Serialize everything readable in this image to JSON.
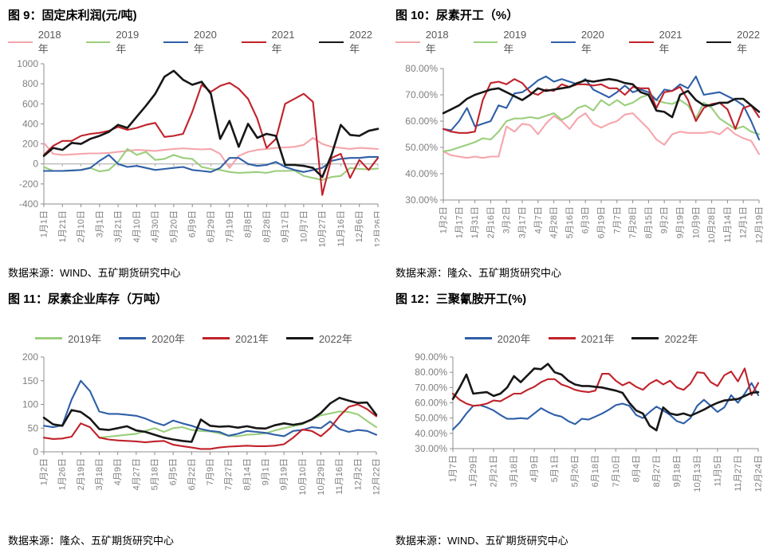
{
  "page": {
    "background": "#ffffff"
  },
  "palette": {
    "y2018": "#F5A6AC",
    "y2019": "#9BCE7D",
    "y2020": "#2F5FA7",
    "y2021": "#C0222B",
    "y2022": "#171717"
  },
  "chart_data": [
    {
      "type": "line",
      "title": "图 9：固定床利润(元/吨)",
      "source": "数据来源：WIND、五矿期货研究中心",
      "ylim": [
        -400,
        1000
      ],
      "ytick_step": 200,
      "ytick_format": "int",
      "zero_axis": true,
      "grid": false,
      "legend_position": "top",
      "x_labels": [
        "1月1日",
        "1月21日",
        "2月10日",
        "3月1日",
        "3月21日",
        "4月10日",
        "4月30日",
        "5月20日",
        "6月9日",
        "6月29日",
        "7月19日",
        "8月8日",
        "8月28日",
        "9月17日",
        "10月7日",
        "10月27日",
        "11月16日",
        "12月6日",
        "12月26日"
      ],
      "series": [
        {
          "name": "2018年",
          "color": "#F5A6AC",
          "values": [
            210,
            100,
            90,
            95,
            100,
            105,
            105,
            110,
            120,
            130,
            140,
            135,
            130,
            140,
            150,
            155,
            150,
            145,
            150,
            100,
            -40,
            80,
            120,
            140,
            150,
            160,
            165,
            170,
            190,
            260,
            200,
            170,
            160,
            150,
            160,
            155,
            150
          ]
        },
        {
          "name": "2019年",
          "color": "#9BCE7D",
          "values": [
            -30,
            -70,
            -70,
            -65,
            -60,
            -40,
            -75,
            -60,
            20,
            150,
            90,
            120,
            40,
            50,
            90,
            60,
            50,
            -30,
            -50,
            -60,
            -80,
            -90,
            -85,
            -80,
            -90,
            -70,
            -70,
            -65,
            -120,
            -140,
            -160,
            -130,
            -120,
            -40,
            -50,
            -55,
            -45
          ]
        },
        {
          "name": "2020年",
          "color": "#2F5FA7",
          "values": [
            -70,
            -70,
            -70,
            -65,
            -60,
            -40,
            30,
            90,
            0,
            -30,
            -20,
            -40,
            -60,
            -50,
            -40,
            -30,
            -60,
            -70,
            -80,
            -40,
            60,
            60,
            0,
            -20,
            -10,
            20,
            -30,
            -60,
            -80,
            -60,
            -40,
            30,
            50,
            60,
            60,
            70,
            70
          ]
        },
        {
          "name": "2021年",
          "color": "#C0222B",
          "values": [
            90,
            180,
            230,
            230,
            280,
            300,
            310,
            330,
            370,
            340,
            360,
            390,
            410,
            270,
            280,
            300,
            520,
            790,
            720,
            780,
            810,
            750,
            650,
            450,
            160,
            250,
            600,
            650,
            700,
            620,
            -310,
            60,
            100,
            -140,
            40,
            -60,
            60
          ]
        },
        {
          "name": "2022年",
          "color": "#171717",
          "values": [
            80,
            160,
            140,
            210,
            200,
            250,
            280,
            320,
            390,
            360,
            470,
            580,
            700,
            870,
            930,
            840,
            790,
            820,
            700,
            250,
            430,
            170,
            400,
            260,
            300,
            280,
            -10,
            -10,
            -20,
            -40,
            -130,
            90,
            390,
            290,
            280,
            330,
            350
          ]
        }
      ]
    },
    {
      "type": "line",
      "title": "图 10：尿素开工（%）",
      "source": "数据来源：隆众、五矿期货研究中心",
      "ylim": [
        30,
        80
      ],
      "ytick_step": 10,
      "ytick_format": "pct",
      "zero_axis": false,
      "grid": false,
      "legend_position": "top",
      "x_labels": [
        "1月2日",
        "1月17日",
        "1月31日",
        "2月16日",
        "3月2日",
        "3月17日",
        "4月7日",
        "4月28日",
        "5月16日",
        "6月3日",
        "6月19日",
        "7月7日",
        "7月28日",
        "8月15日",
        "9月2日",
        "9月19日",
        "10月9日",
        "10月28日",
        "11月14日",
        "12月1日",
        "12月19日"
      ],
      "series": [
        {
          "name": "2018年",
          "color": "#F5A6AC",
          "values": [
            48.5,
            47,
            46.5,
            46,
            46.5,
            46,
            46.5,
            46.5,
            58,
            56,
            59,
            58.5,
            55,
            59,
            62,
            60,
            57,
            61,
            63,
            59,
            57.5,
            59,
            60,
            62.5,
            63,
            60,
            57,
            53,
            51,
            55,
            56,
            55.5,
            55.5,
            55.5,
            56,
            55,
            57.5,
            55,
            53.5,
            52.5,
            47.5
          ]
        },
        {
          "name": "2019年",
          "color": "#9BCE7D",
          "values": [
            48.5,
            49,
            50,
            51,
            52,
            53.5,
            53,
            56,
            60,
            61,
            61,
            61.5,
            61,
            62,
            63,
            60.5,
            62,
            65,
            66,
            64,
            68,
            66,
            68,
            66,
            67,
            69,
            70,
            68,
            67,
            66.5,
            68,
            66,
            61,
            67,
            65,
            61,
            59,
            57,
            58,
            56,
            55
          ]
        },
        {
          "name": "2020年",
          "color": "#2F5FA7",
          "values": [
            57,
            56.5,
            60,
            65,
            58,
            59,
            60,
            66,
            65,
            70.5,
            71,
            73,
            75.5,
            77,
            75,
            76,
            75,
            74,
            76,
            72,
            70.5,
            69,
            71,
            73.5,
            71,
            72,
            71,
            68,
            72,
            71.5,
            74,
            72.5,
            77,
            70,
            70.5,
            71,
            69.5,
            68,
            66,
            60,
            53
          ]
        },
        {
          "name": "2021年",
          "color": "#C0222B",
          "values": [
            57,
            56,
            55.5,
            55.5,
            56,
            68,
            74.5,
            75,
            74,
            76,
            74.5,
            71,
            70,
            72,
            71.5,
            74,
            73,
            74,
            74,
            73.5,
            74,
            72.5,
            72.5,
            70,
            73,
            72.5,
            72.5,
            65,
            71,
            71.5,
            73,
            68,
            60,
            65,
            66.5,
            67,
            64.5,
            57,
            65,
            66,
            61.5
          ]
        },
        {
          "name": "2022年",
          "color": "#171717",
          "values": [
            63,
            64.5,
            66,
            68.5,
            70,
            71,
            72,
            72.5,
            71,
            69.5,
            68,
            70,
            72.5,
            71.5,
            72,
            72.5,
            73,
            74.5,
            75.5,
            75,
            75.5,
            76,
            75.5,
            74.5,
            74,
            71,
            70,
            64,
            63.5,
            61.5,
            70,
            71.5,
            68,
            66,
            66,
            67,
            67,
            68.5,
            68.5,
            66,
            63.5
          ]
        }
      ]
    },
    {
      "type": "line",
      "title": "图 11：尿素企业库存（万吨）",
      "source": "数据来源：隆众、五矿期货研究中心",
      "ylim": [
        0,
        200
      ],
      "ytick_step": 50,
      "ytick_format": "int",
      "zero_axis": false,
      "grid": false,
      "legend_position": "top",
      "x_labels": [
        "1月2日",
        "1月26日",
        "2月19日",
        "3月18日",
        "4月9日",
        "4月27日",
        "5月18日",
        "6月5日",
        "6月22日",
        "7月9日",
        "7月27日",
        "8月14日",
        "9月1日",
        "9月19日",
        "10月10日",
        "10月29日",
        "11月16日",
        "12月2日",
        "12月22日"
      ],
      "series": [
        {
          "name": "2019年",
          "color": "#9BCE7D",
          "values": [
            null,
            null,
            null,
            null,
            null,
            null,
            30,
            32,
            34,
            36,
            38,
            44,
            50,
            42,
            50,
            52,
            46,
            44,
            43,
            39,
            34,
            33,
            36,
            37,
            39,
            45,
            50,
            54,
            58,
            68,
            77,
            81,
            85,
            84,
            79,
            65,
            52
          ]
        },
        {
          "name": "2020年",
          "color": "#2F5FA7",
          "values": [
            55,
            52,
            56,
            110,
            150,
            128,
            85,
            80,
            80,
            78,
            76,
            70,
            62,
            56,
            66,
            60,
            55,
            48,
            44,
            42,
            34,
            38,
            44,
            42,
            40,
            36,
            33,
            44,
            46,
            52,
            50,
            64,
            48,
            42,
            46,
            44,
            36
          ]
        },
        {
          "name": "2021年",
          "color": "#C0222B",
          "values": [
            30,
            27,
            28,
            32,
            60,
            52,
            30,
            26,
            24,
            23,
            22,
            20,
            22,
            23,
            15,
            12,
            9,
            6,
            6,
            9,
            11,
            12,
            13,
            12,
            12,
            13,
            16,
            30,
            47,
            44,
            33,
            50,
            75,
            95,
            100,
            90,
            75
          ]
        },
        {
          "name": "2022年",
          "color": "#171717",
          "values": [
            72,
            58,
            55,
            88,
            84,
            70,
            48,
            46,
            50,
            54,
            45,
            42,
            36,
            30,
            26,
            23,
            21,
            68,
            55,
            53,
            54,
            51,
            54,
            50,
            49,
            56,
            60,
            57,
            60,
            68,
            82,
            102,
            114,
            108,
            103,
            104,
            78
          ]
        }
      ]
    },
    {
      "type": "line",
      "title": "图 12：三聚氰胺开工(%)",
      "source": "数据来源：WIND、五矿期货研究中心",
      "ylim": [
        30,
        90
      ],
      "ytick_step": 10,
      "ytick_format": "pct",
      "zero_axis": false,
      "grid": false,
      "legend_position": "top",
      "x_labels": [
        "1月7日",
        "1月29日",
        "2月21日",
        "3月18日",
        "4月9日",
        "5月1日",
        "5月26日",
        "6月18日",
        "7月10日",
        "8月4日",
        "8月27日",
        "9月18日",
        "10月13日",
        "11月5日",
        "11月27日",
        "12月24日"
      ],
      "series": [
        {
          "name": "2020年",
          "color": "#2F5FA7",
          "values": [
            42.5,
            47,
            53,
            58,
            58.5,
            57,
            55,
            52,
            49.5,
            49.5,
            50,
            49.5,
            53,
            56.5,
            54,
            52,
            51,
            48,
            46,
            49.5,
            49,
            51,
            53,
            55.5,
            58.5,
            59.5,
            58,
            52,
            50,
            54,
            57.5,
            55,
            52,
            48,
            46.5,
            50,
            58,
            62,
            58,
            54,
            57,
            65,
            60,
            66,
            73,
            65
          ]
        },
        {
          "name": "2021年",
          "color": "#C0222B",
          "values": [
            66,
            62,
            59.5,
            58,
            58.5,
            59.5,
            61.5,
            61,
            63.5,
            66,
            66,
            68.5,
            70.5,
            73.5,
            75.5,
            75.5,
            72,
            70.5,
            68.5,
            67.5,
            67,
            68,
            79,
            79,
            74.5,
            71.5,
            73.5,
            70.5,
            68.5,
            72.5,
            75,
            72,
            74.5,
            70,
            68.5,
            72.5,
            80,
            79.5,
            73.5,
            71,
            78,
            80.5,
            74,
            82.5,
            65,
            73
          ]
        },
        {
          "name": "2022年",
          "color": "#171717",
          "values": [
            62.5,
            70,
            78.5,
            66,
            66.5,
            67,
            64.5,
            66,
            70,
            77.5,
            73.5,
            78,
            82.5,
            82,
            85.5,
            80,
            78.5,
            74.5,
            72,
            71,
            71,
            70.5,
            70,
            69,
            68,
            66.5,
            60,
            55,
            53,
            45,
            42,
            57,
            53,
            52,
            53,
            51.5,
            53.5,
            55.5,
            58,
            60,
            61.5,
            62,
            62.5,
            64.5,
            66.5,
            67
          ]
        }
      ]
    }
  ]
}
